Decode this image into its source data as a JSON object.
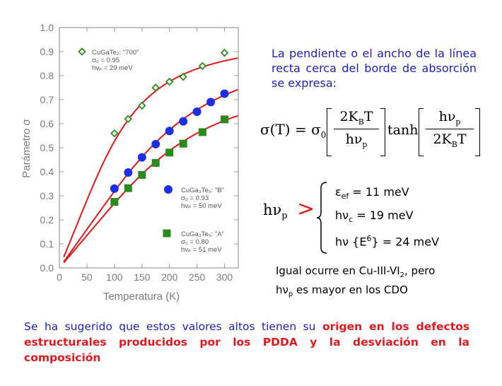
{
  "chart_data": {
    "type": "scatter",
    "xlabel": "Temperatura  (K)",
    "ylabel": "Parámetro σ",
    "xlim": [
      0,
      325
    ],
    "ylim": [
      0.0,
      1.0
    ],
    "x_ticks": [
      "0",
      "50",
      "100",
      "150",
      "200",
      "250",
      "300"
    ],
    "y_ticks": [
      "0.0",
      "0.1",
      "0.2",
      "0.3",
      "0.4",
      "0.5",
      "0.6",
      "0.7",
      "0.8",
      "0.9",
      "1.0"
    ],
    "series": [
      {
        "name": "CuGaTe2: \"700\"",
        "marker": "open-diamond",
        "color": "#2e8b1e",
        "x": [
          100,
          125,
          150,
          175,
          200,
          225,
          260,
          300
        ],
        "y": [
          0.56,
          0.62,
          0.675,
          0.75,
          0.775,
          0.795,
          0.84,
          0.895
        ],
        "fit": {
          "sigma0": 0.95,
          "hnu_p_meV": 29
        },
        "legend_lines": [
          "CuGaTe₂: \"700\"",
          "σ₀ = 0.95",
          "hνₚ = 29 meV"
        ]
      },
      {
        "name": "CuGa3Te5: \"B\"",
        "marker": "filled-circle",
        "color": "#1a2fe6",
        "x": [
          100,
          125,
          150,
          175,
          200,
          225,
          250,
          275,
          300
        ],
        "y": [
          0.33,
          0.397,
          0.46,
          0.515,
          0.57,
          0.61,
          0.65,
          0.69,
          0.725
        ],
        "fit": {
          "sigma0": 0.93,
          "hnu_p_meV": 50
        },
        "legend_lines": [
          "CuGa₃Te₅: \"B\"",
          "σ₀ = 0.93",
          "hνₚ = 50 meV"
        ]
      },
      {
        "name": "CuGa3Te5: \"A\"",
        "marker": "filled-square",
        "color": "#2b8a1c",
        "x": [
          100,
          125,
          150,
          175,
          200,
          225,
          260,
          300
        ],
        "y": [
          0.275,
          0.332,
          0.387,
          0.437,
          0.48,
          0.517,
          0.565,
          0.618
        ],
        "fit": {
          "sigma0": 0.8,
          "hnu_p_meV": 51
        },
        "legend_lines": [
          "CuGa₃Te₅: \"A\"",
          "σ₀ = 0.80",
          "hνₚ = 51 meV"
        ]
      }
    ],
    "fit_color": "#e01818"
  },
  "text": {
    "description": "La pendiente o el ancho de la línea recta cerca del borde de absorción se expresa:",
    "formula": {
      "lhs": "σ(T) = σ",
      "lhs_sub": "0",
      "frac1_num": "2K",
      "frac1_num_sub": "B",
      "frac1_num_tail": "T",
      "frac1_den": "hν",
      "frac1_den_sub": "p",
      "tanh": "tanh",
      "frac2_num": "hν",
      "frac2_num_sub": "p",
      "frac2_den": "2K",
      "frac2_den_sub": "B",
      "frac2_den_tail": "T"
    },
    "hnu_label": "hν",
    "hnu_sub": "p",
    "greater": ">",
    "energies": [
      {
        "sym": "ε",
        "sub": "ef",
        "rest": " = 11 meV"
      },
      {
        "sym": "hν",
        "sub": "c",
        "rest": " = 19 meV"
      },
      {
        "sym": "hν {E",
        "sup": "6",
        "rest": "} = 24 meV"
      }
    ],
    "note_line1": "Igual ocurre en Cu-III-VI",
    "note_line1_sub": "2",
    "note_line1_tail": ", pero",
    "note_line2": "hν",
    "note_line2_sub": "p",
    "note_line2_tail": " es mayor en los CDO",
    "bottom_normal": "Se ha sugerido que estos valores altos tienen su ",
    "bottom_highlight": "origen en los defectos estructurales producidos por los PDDA y la desviación en la composición"
  },
  "colors": {
    "text_blue": "#1f1fb8",
    "highlight_red": "#e0191f"
  }
}
